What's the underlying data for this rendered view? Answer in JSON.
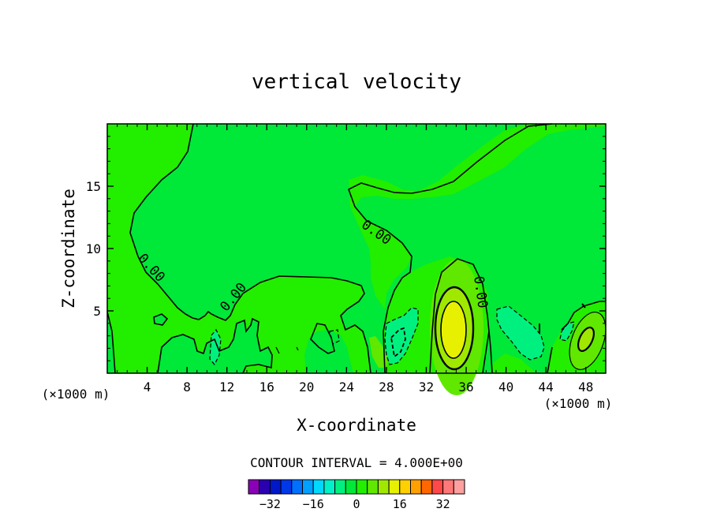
{
  "chart_data": {
    "type": "contour",
    "title": "vertical velocity",
    "xlabel": "X-coordinate",
    "ylabel": "Z-coordinate",
    "x_unit_left": "(×1000 m)",
    "x_unit_right": "(×1000 m)",
    "xlim": [
      0,
      50
    ],
    "ylim": [
      0,
      20
    ],
    "x_ticks": [
      4,
      8,
      12,
      16,
      20,
      24,
      28,
      32,
      36,
      40,
      44,
      48
    ],
    "x_tick_labels": [
      "4",
      "8",
      "12",
      "16",
      "20",
      "24",
      "28",
      "32",
      "36",
      "40",
      "44",
      "48"
    ],
    "y_ticks": [
      5,
      10,
      15
    ],
    "y_tick_labels": [
      "5",
      "10",
      "15"
    ],
    "contour_interval_text": "CONTOUR INTERVAL = 4.000E+00",
    "contour_labels": [
      "0.00",
      "0.00",
      "0.00",
      "0.00",
      "0.00"
    ],
    "colorbar": {
      "colors": [
        "#8a00b8",
        "#2a00b0",
        "#0018c8",
        "#0038e8",
        "#0070ff",
        "#00a0ff",
        "#00d8ff",
        "#00f0c8",
        "#00f080",
        "#00e838",
        "#22ee00",
        "#60e800",
        "#a0e800",
        "#e6f000",
        "#ffd000",
        "#ffa000",
        "#ff6800",
        "#ff4848",
        "#ff7878",
        "#ffa0a0"
      ],
      "tick_values": [
        -32,
        -16,
        0,
        16,
        32
      ],
      "tick_labels": [
        "−32",
        "−16",
        "0",
        "16",
        "32"
      ]
    },
    "features": [
      {
        "kind": "updraft",
        "x": 34.8,
        "z": 3.5,
        "max": 14
      },
      {
        "kind": "updraft",
        "x": 48.0,
        "z": 3.0,
        "max": 8
      },
      {
        "kind": "downdraft",
        "x": 29.5,
        "z": 2.5,
        "min": -8
      },
      {
        "kind": "downdraft",
        "x": 40.5,
        "z": 3.5,
        "min": -4
      }
    ]
  }
}
